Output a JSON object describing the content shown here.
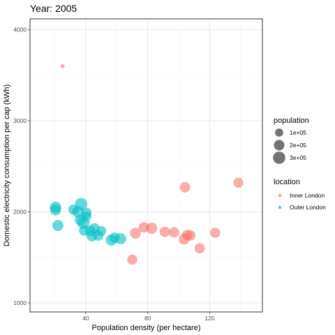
{
  "chart_data": {
    "type": "scatter",
    "title": "Year: 2005",
    "xlabel": "Population density (per hectare)",
    "ylabel": "Domestic electricity consumption per cap (kWh)",
    "xlim": [
      4,
      154
    ],
    "ylim": [
      900,
      4120
    ],
    "x_ticks": [
      40,
      80,
      120
    ],
    "y_ticks": [
      1000,
      2000,
      3000,
      4000
    ],
    "grid": true,
    "size_legend": {
      "title": "population",
      "entries": [
        {
          "label": "1e+05",
          "value": 100000
        },
        {
          "label": "2e+05",
          "value": 200000
        },
        {
          "label": "3e+05",
          "value": 300000
        }
      ]
    },
    "color_legend": {
      "title": "location",
      "entries": [
        {
          "label": "Inner London",
          "color": "#F8766D"
        },
        {
          "label": "Outer London",
          "color": "#00BFC4"
        }
      ]
    },
    "series": [
      {
        "name": "Inner London",
        "color": "#F8766D",
        "points": [
          {
            "x": 25,
            "y": 3600,
            "population": 8000
          },
          {
            "x": 70,
            "y": 1475,
            "population": 180000
          },
          {
            "x": 72,
            "y": 1765,
            "population": 220000
          },
          {
            "x": 77.5,
            "y": 1830,
            "population": 200000
          },
          {
            "x": 82.5,
            "y": 1820,
            "population": 240000
          },
          {
            "x": 91,
            "y": 1780,
            "population": 200000
          },
          {
            "x": 97,
            "y": 1775,
            "population": 190000
          },
          {
            "x": 103.5,
            "y": 1700,
            "population": 220000
          },
          {
            "x": 105.5,
            "y": 1745,
            "population": 200000
          },
          {
            "x": 107.5,
            "y": 1740,
            "population": 190000
          },
          {
            "x": 104,
            "y": 2270,
            "population": 200000
          },
          {
            "x": 113.5,
            "y": 1600,
            "population": 190000
          },
          {
            "x": 123.5,
            "y": 1770,
            "population": 180000
          },
          {
            "x": 138.5,
            "y": 2320,
            "population": 180000
          }
        ]
      },
      {
        "name": "Outer London",
        "color": "#00BFC4",
        "points": [
          {
            "x": 20.5,
            "y": 2050,
            "population": 250000
          },
          {
            "x": 20.5,
            "y": 2020,
            "population": 220000
          },
          {
            "x": 22,
            "y": 1850,
            "population": 230000
          },
          {
            "x": 32,
            "y": 2025,
            "population": 180000
          },
          {
            "x": 35,
            "y": 2000,
            "population": 260000
          },
          {
            "x": 37,
            "y": 2085,
            "population": 300000
          },
          {
            "x": 36.5,
            "y": 1910,
            "population": 230000
          },
          {
            "x": 38.5,
            "y": 1880,
            "population": 300000
          },
          {
            "x": 40.5,
            "y": 1990,
            "population": 180000
          },
          {
            "x": 40.5,
            "y": 1950,
            "population": 160000
          },
          {
            "x": 39,
            "y": 1795,
            "population": 200000
          },
          {
            "x": 43,
            "y": 1790,
            "population": 200000
          },
          {
            "x": 44,
            "y": 1735,
            "population": 220000
          },
          {
            "x": 45.5,
            "y": 1820,
            "population": 190000
          },
          {
            "x": 48,
            "y": 1740,
            "population": 200000
          },
          {
            "x": 50,
            "y": 1790,
            "population": 180000
          },
          {
            "x": 56.5,
            "y": 1690,
            "population": 240000
          },
          {
            "x": 58.5,
            "y": 1715,
            "population": 200000
          },
          {
            "x": 62.5,
            "y": 1705,
            "population": 230000
          }
        ]
      }
    ]
  }
}
